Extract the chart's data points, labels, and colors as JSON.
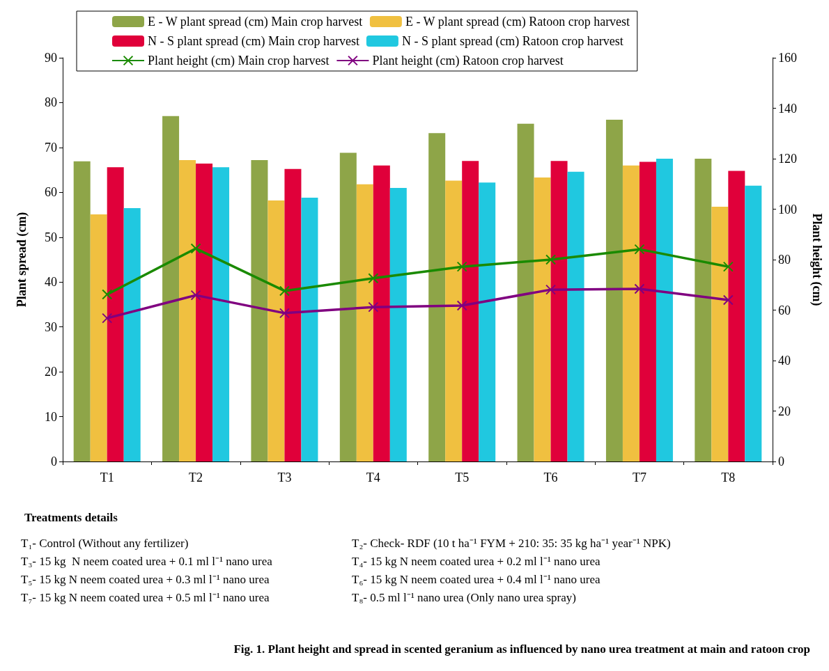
{
  "chart_data": {
    "type": "bar",
    "title": "Fig. 1. Plant height and spread in scented geranium as influenced by nano urea treatment at main and ratoon crop",
    "ylabel": "Plant spread (cm)",
    "y2label": "Plant height (cm)",
    "categories": [
      "T1",
      "T2",
      "T3",
      "T4",
      "T5",
      "T6",
      "T7",
      "T8"
    ],
    "series": [
      {
        "name": "E - W plant spread (cm) Main crop harvest",
        "color": "#8ea548",
        "values": [
          66.9,
          77,
          67.2,
          68.8,
          73.2,
          75.3,
          76.2,
          67.5
        ]
      },
      {
        "name": "E - W plant spread (cm) Ratoon crop harvest",
        "color": "#f0c040",
        "values": [
          55.1,
          67.2,
          58.2,
          61.8,
          62.6,
          63.3,
          66,
          56.8
        ]
      },
      {
        "name": "N - S plant spread (cm) Main crop harvest",
        "color": "#e0003a",
        "values": [
          65.6,
          66.4,
          65.2,
          66,
          67,
          67,
          66.8,
          64.8
        ]
      },
      {
        "name": "N - S plant spread (cm) Ratoon crop harvest",
        "color": "#20c8e0",
        "values": [
          56.5,
          65.6,
          58.8,
          61,
          62.2,
          64.6,
          67.5,
          61.5
        ]
      },
      {
        "name": "Plant height (cm) Main crop harvest",
        "type": "line",
        "axis": "y2",
        "marker": "cross",
        "color": "#1a8a00",
        "values": [
          66.2,
          84.4,
          67.6,
          72.6,
          77.2,
          80,
          84.1,
          77.2
        ]
      },
      {
        "name": "Plant height (cm) Ratoon crop harvest",
        "type": "line",
        "axis": "y2",
        "marker": "cross",
        "color": "#800080",
        "values": [
          56.8,
          65.9,
          58.8,
          61.2,
          61.8,
          68.1,
          68.4,
          64
        ]
      }
    ],
    "ylim": [
      0,
      90
    ],
    "yticks": [
      0,
      10,
      20,
      30,
      40,
      50,
      60,
      70,
      80,
      90
    ],
    "y2lim": [
      0,
      160
    ],
    "y2ticks": [
      0,
      20,
      40,
      60,
      80,
      100,
      120,
      140,
      160
    ],
    "legend": "top",
    "grid": false,
    "annotations": [
      "Treatments details",
      "T₁- Control (Without any fertilizer)",
      "T₂- Check- RDF (10 t ha⁻¹ FYM + 210: 35: 35 kg ha⁻¹ year⁻¹ NPK)",
      "T₃- 15 kg  N neem coated urea + 0.1 ml l⁻¹ nano urea",
      "T₄- 15 kg N neem coated urea + 0.2 ml l⁻¹ nano urea",
      "T₅- 15 kg N neem coated urea + 0.3 ml l⁻¹ nano urea",
      "T₆- 15 kg N neem coated urea + 0.4 ml l⁻¹ nano urea",
      "T₇- 15 kg N neem coated urea + 0.5 ml l⁻¹ nano urea",
      "T₈- 0.5 ml l⁻¹ nano urea (Only nano urea spray)"
    ]
  }
}
